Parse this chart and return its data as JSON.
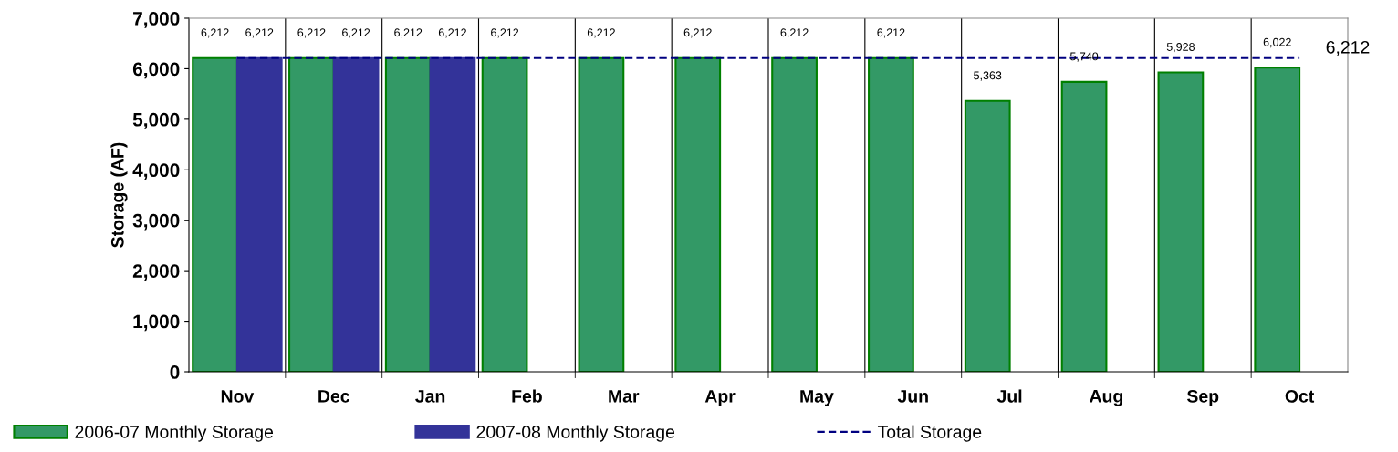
{
  "chart_data": {
    "type": "bar",
    "ylabel": "Storage (AF)",
    "categories": [
      "Nov",
      "Dec",
      "Jan",
      "Feb",
      "Mar",
      "Apr",
      "May",
      "Jun",
      "Jul",
      "Aug",
      "Sep",
      "Oct"
    ],
    "series": [
      {
        "name": "2006-07 Monthly Storage",
        "color": "#339966",
        "values": [
          6212,
          6212,
          6212,
          6212,
          6212,
          6212,
          6212,
          6212,
          5363,
          5740,
          5928,
          6022
        ],
        "value_labels": [
          "6,212",
          "6,212",
          "6,212",
          "6,212",
          "6,212",
          "6,212",
          "6,212",
          "6,212",
          "5,363",
          "5,740",
          "5,928",
          "6,022"
        ]
      },
      {
        "name": "2007-08 Monthly Storage",
        "color": "#333399",
        "values": [
          6212,
          6212,
          6212,
          null,
          null,
          null,
          null,
          null,
          null,
          null,
          null,
          null
        ],
        "value_labels": [
          "6,212",
          "6,212",
          "6,212",
          null,
          null,
          null,
          null,
          null,
          null,
          null,
          null,
          null
        ]
      },
      {
        "name": "Total Storage",
        "type": "line",
        "line_style": "dashed",
        "marker": "none",
        "color": "#000080",
        "values": [
          6212,
          6212,
          6212,
          6212,
          6212,
          6212,
          6212,
          6212,
          6212,
          6212,
          6212,
          6212
        ],
        "value_labels": [
          null,
          null,
          null,
          null,
          null,
          null,
          null,
          null,
          null,
          null,
          null,
          "6,212"
        ]
      }
    ],
    "data_labels": true,
    "ylim": [
      0,
      7000
    ],
    "yticks": [
      {
        "value": 0,
        "label": "0"
      },
      {
        "value": 1000,
        "label": "1,000"
      },
      {
        "value": 2000,
        "label": "2,000"
      },
      {
        "value": 3000,
        "label": "3,000"
      },
      {
        "value": 4000,
        "label": "4,000"
      },
      {
        "value": 5000,
        "label": "5,000"
      },
      {
        "value": 6000,
        "label": "6,000"
      },
      {
        "value": 7000,
        "label": "7,000"
      }
    ],
    "grid": "x",
    "legend": "bottom"
  }
}
